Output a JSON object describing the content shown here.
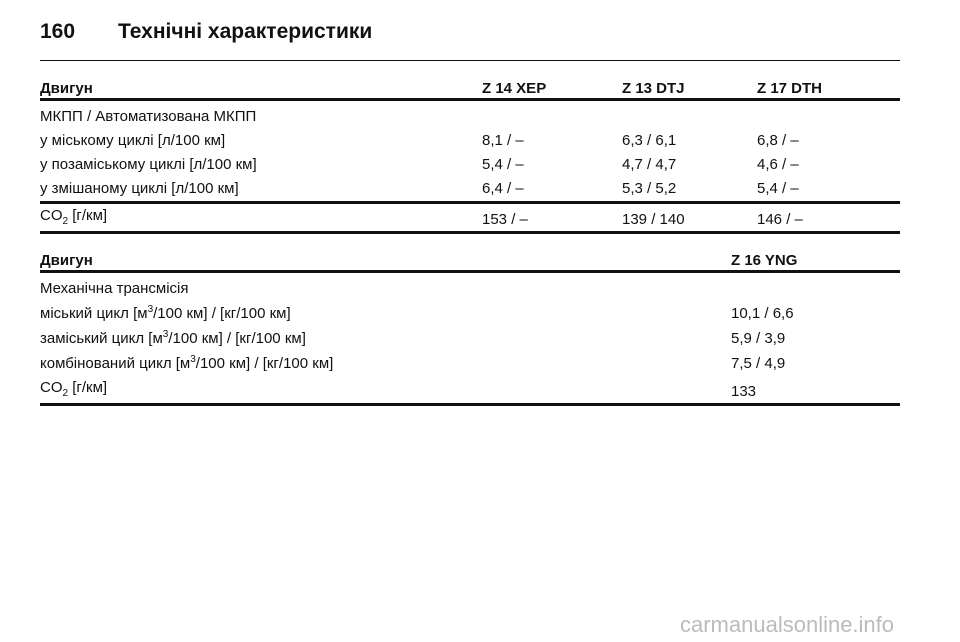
{
  "header": {
    "page_number": "160",
    "title": "Технічні характеристики"
  },
  "table1": {
    "columns": [
      "Двигун",
      "Z 14 XEP",
      "Z 13 DTJ",
      "Z 17 DTH"
    ],
    "section": "МКПП / Автоматизована МКПП",
    "rows": [
      [
        "у міському циклі [л/100 км]",
        "8,1 / –",
        "6,3 / 6,1",
        "6,8 / –"
      ],
      [
        "у позаміському циклі [л/100 км]",
        "5,4 / –",
        "4,7 / 4,7",
        "4,6 / –"
      ],
      [
        "у змішаному циклі [л/100 км]",
        "6,4 / –",
        "5,3 / 5,2",
        "5,4 / –"
      ]
    ],
    "co2": {
      "label": [
        "CO",
        "2",
        " [г/км]"
      ],
      "values": [
        "153 / –",
        "139 / 140",
        "146 / –"
      ]
    }
  },
  "table2": {
    "columns": [
      "Двигун",
      "Z 16 YNG"
    ],
    "section": "Механічна трансмісія",
    "rows": [
      {
        "label": [
          "міський цикл [м",
          "3",
          "/100 км] / [кг/100 км]"
        ],
        "value": "10,1 / 6,6"
      },
      {
        "label": [
          "заміський цикл [м",
          "3",
          "/100 км] / [кг/100 км]"
        ],
        "value": "5,9 / 3,9"
      },
      {
        "label": [
          "комбінований цикл [м",
          "3",
          "/100 км] / [кг/100 км]"
        ],
        "value": "7,5 / 4,9"
      }
    ],
    "co2": {
      "label": [
        "CO",
        "2",
        " [г/км]"
      ],
      "value": "133"
    }
  },
  "watermark": "carmanualsonline.info"
}
